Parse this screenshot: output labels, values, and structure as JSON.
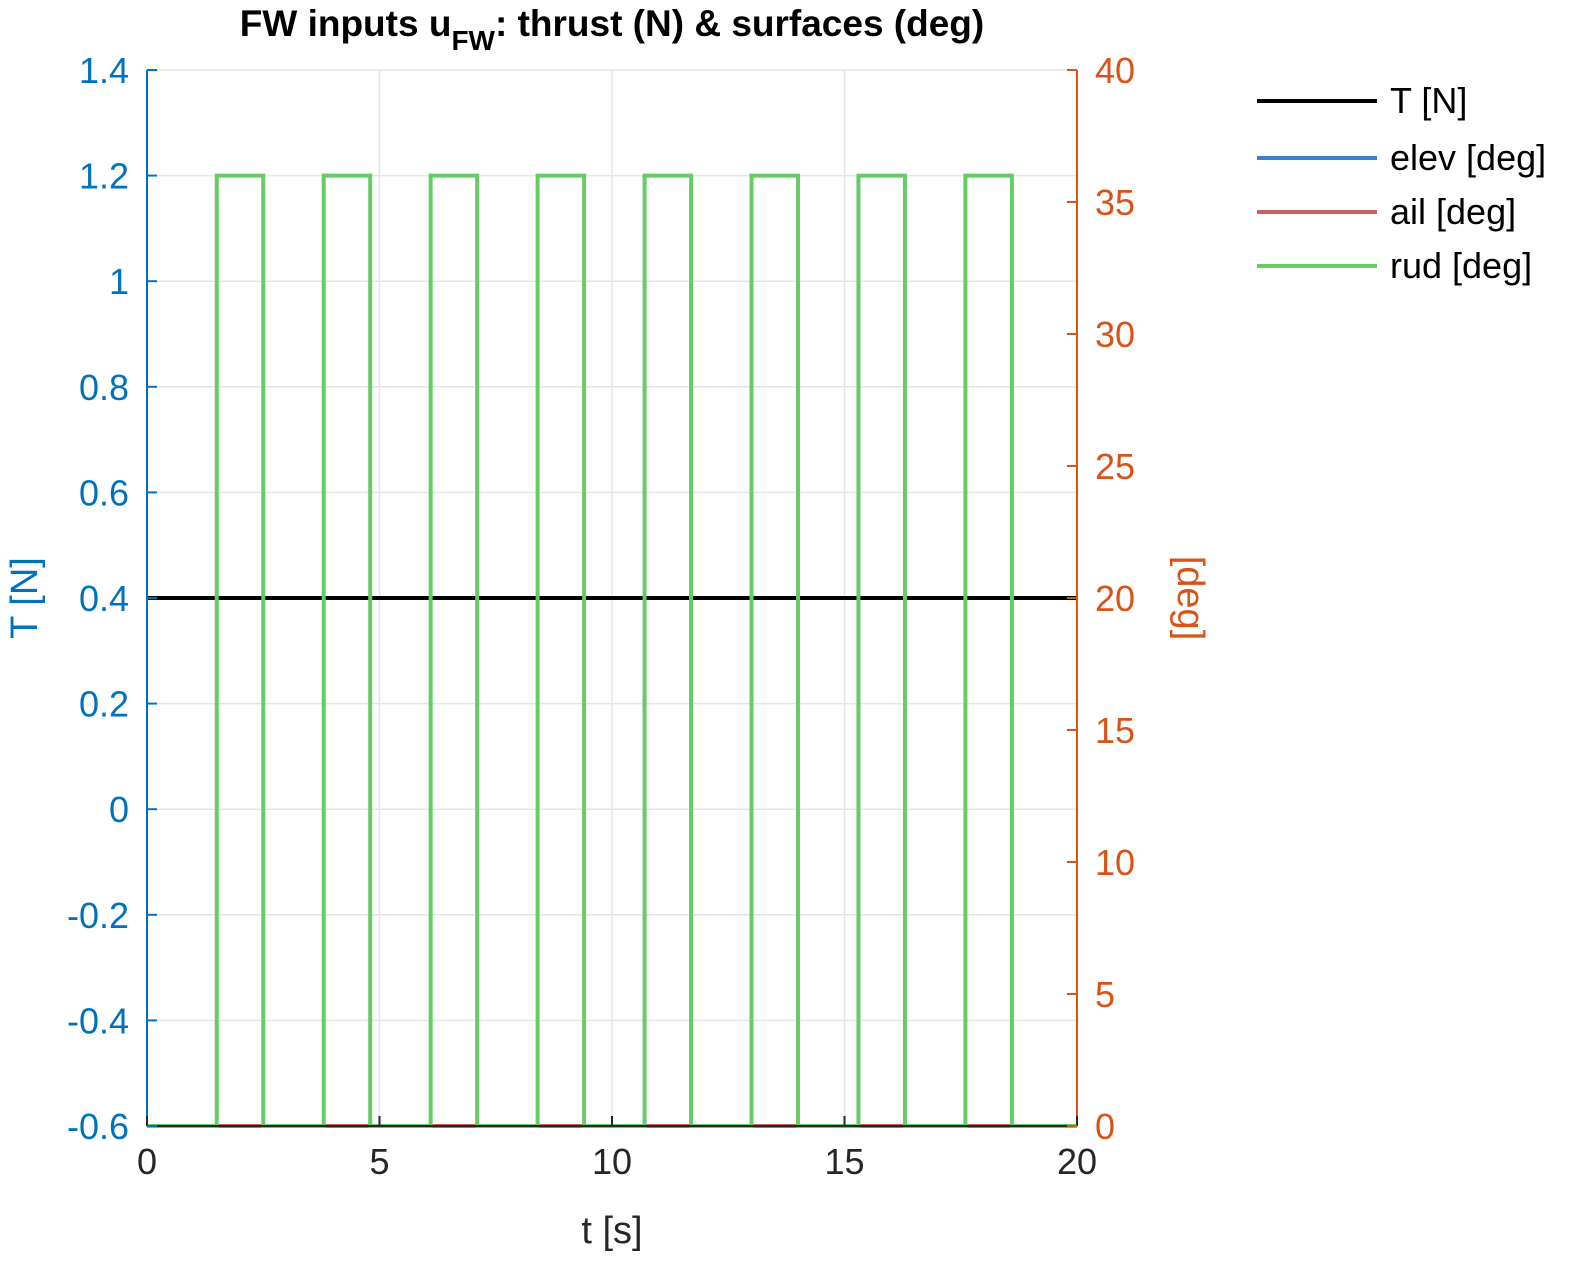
{
  "chart_data": {
    "type": "line",
    "title": {
      "main": "FW inputs u",
      "sub": "FW",
      "rest": ": thrust (N) & surfaces (deg)"
    },
    "xlabel": "t [s]",
    "ylabel_left": "T [N]",
    "ylabel_right": "[deg]",
    "xlim": [
      0,
      20
    ],
    "ylim_left": [
      -0.6,
      1.4
    ],
    "ylim_right": [
      0,
      40
    ],
    "x_ticks": [
      "0",
      "5",
      "10",
      "15",
      "20"
    ],
    "y_left_ticks": [
      "-0.6",
      "-0.4",
      "-0.2",
      "0",
      "0.2",
      "0.4",
      "0.6",
      "0.8",
      "1",
      "1.2",
      "1.4"
    ],
    "y_right_ticks": [
      "0",
      "5",
      "10",
      "15",
      "20",
      "25",
      "30",
      "35",
      "40"
    ],
    "grid": true,
    "legend_position": "outside-top-right",
    "colors": {
      "left_axis": "#0072BD",
      "right_axis": "#D95319",
      "grid": "#e6e6e6",
      "x_axis": "#262626"
    },
    "series": [
      {
        "name": "T [N]",
        "axis": "left",
        "color": "#000000",
        "x": [
          0,
          20
        ],
        "y": [
          0.4,
          0.4
        ]
      },
      {
        "name": "elev [deg]",
        "axis": "right",
        "color": "#3F7FCF",
        "x": [
          0,
          20
        ],
        "y": [
          0,
          0
        ]
      },
      {
        "name": "ail [deg]",
        "axis": "right",
        "color": "#C8625E",
        "x": [
          0,
          20
        ],
        "y": [
          0,
          0
        ]
      },
      {
        "name": "rud [deg]",
        "axis": "right",
        "color": "#66CC66",
        "pulse_on": [
          1.5,
          3.8,
          6.1,
          8.4,
          10.7,
          13.0,
          15.3,
          17.6
        ],
        "pulse_off": [
          2.5,
          4.8,
          7.1,
          9.4,
          11.7,
          14.0,
          16.3,
          18.6
        ],
        "high": 36,
        "low": 0
      }
    ]
  }
}
